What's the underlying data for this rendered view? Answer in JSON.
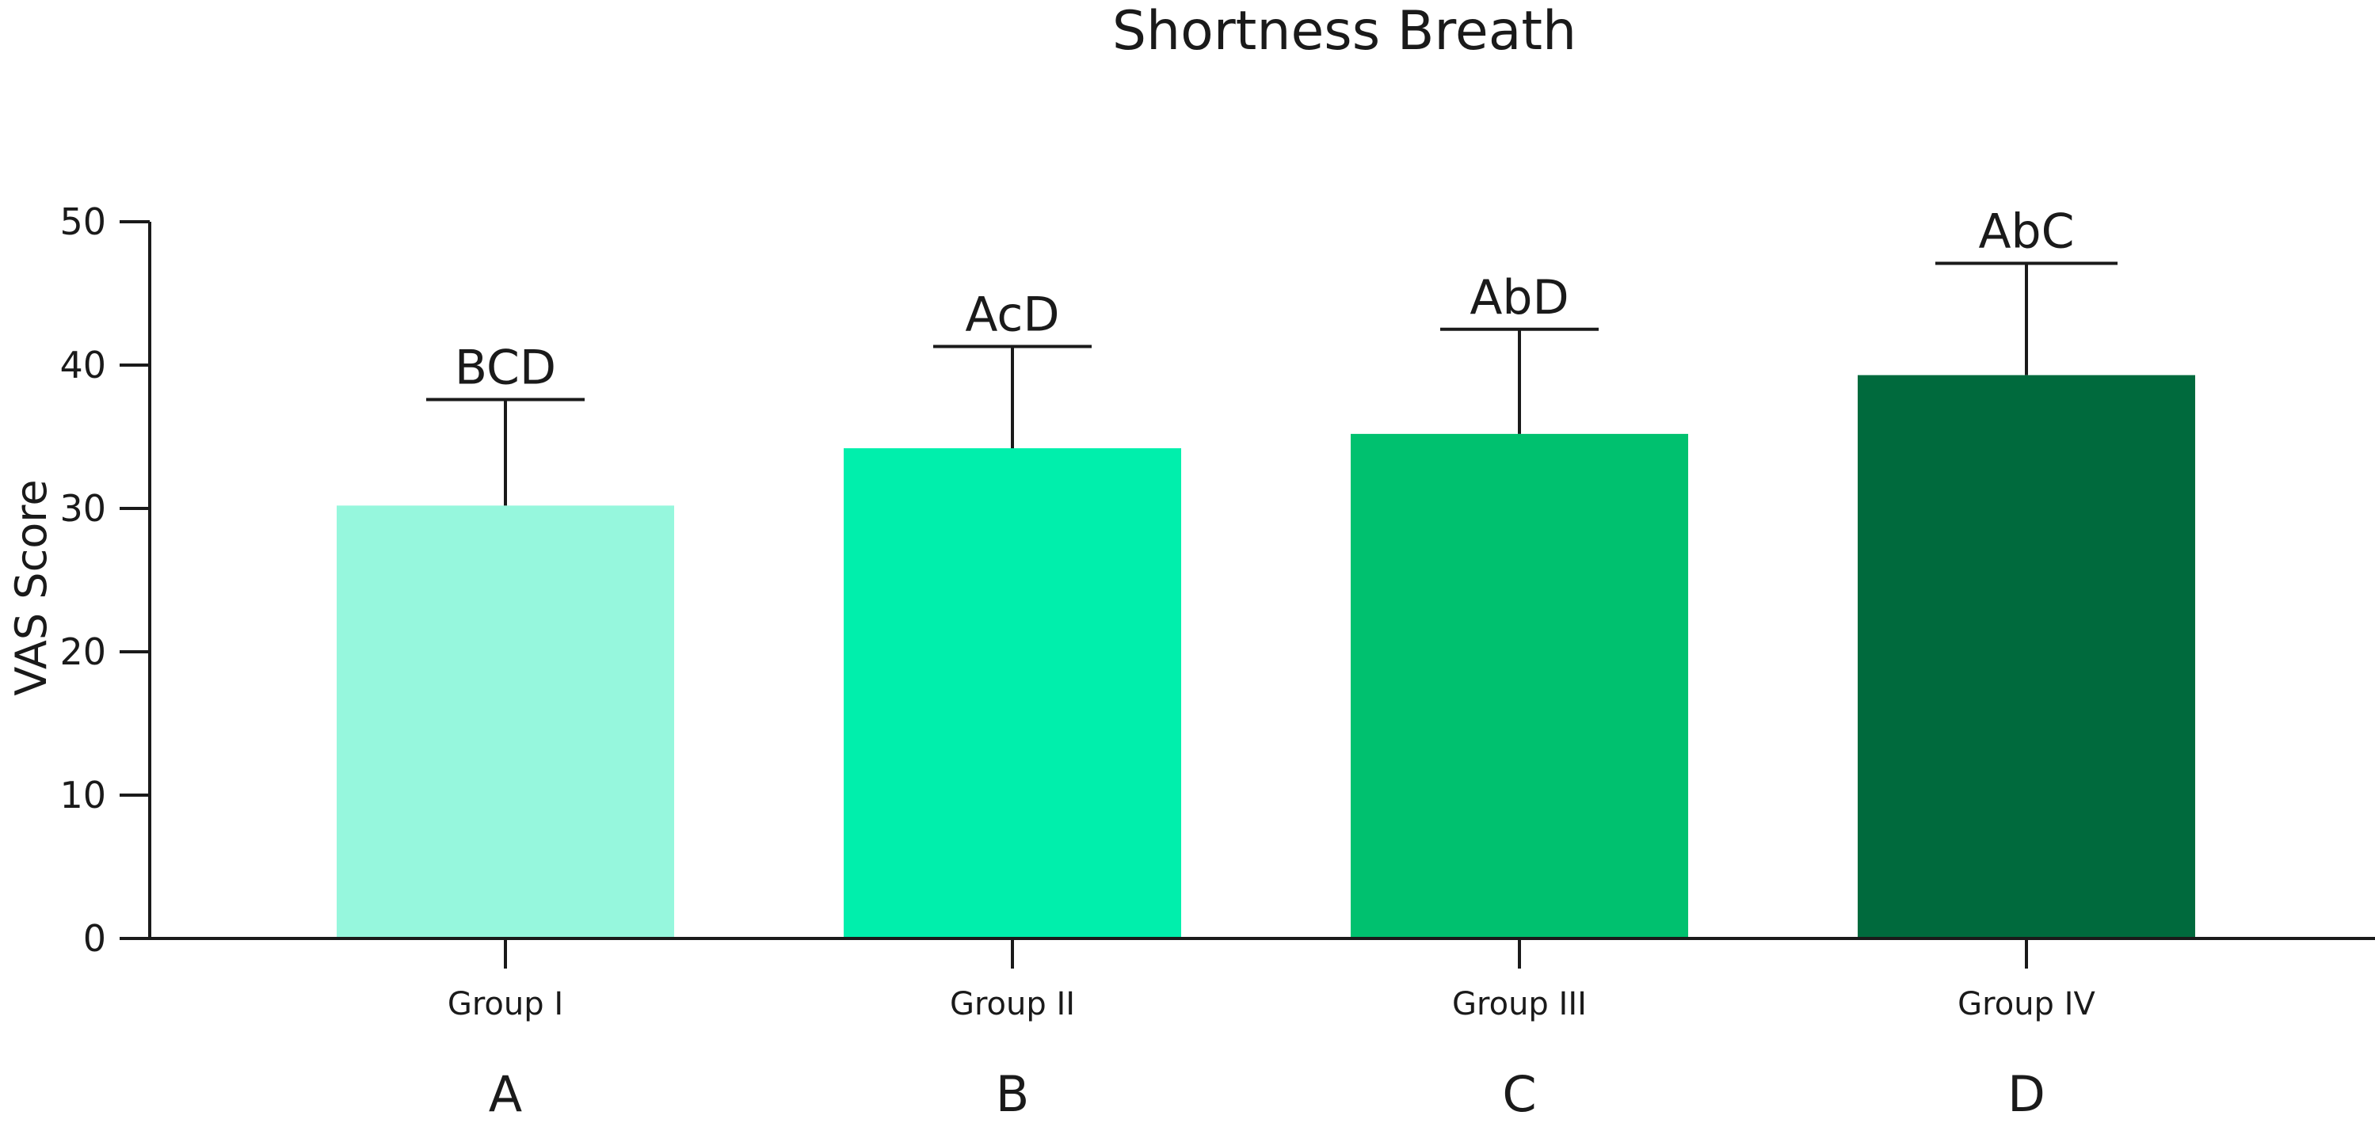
{
  "chart_data": {
    "type": "bar",
    "title": "Shortness Breath",
    "xlabel": "",
    "ylabel": "VAS Score",
    "ylim": [
      0,
      50
    ],
    "yticks": [
      "0",
      "10",
      "20",
      "30",
      "40",
      "50"
    ],
    "grid": false,
    "categories": [
      "Group I",
      "Group II",
      "Group III",
      "Group IV"
    ],
    "group_letters": [
      "A",
      "B",
      "C",
      "D"
    ],
    "values": [
      30.2,
      34.2,
      35.2,
      39.3
    ],
    "error_upper": [
      37.6,
      41.3,
      42.5,
      47.1
    ],
    "significance_labels": [
      "BCD",
      "AcD",
      "AbD",
      "AbC"
    ],
    "colors": [
      "#96f7dd",
      "#00efac",
      "#00c16f",
      "#006a3d"
    ]
  }
}
